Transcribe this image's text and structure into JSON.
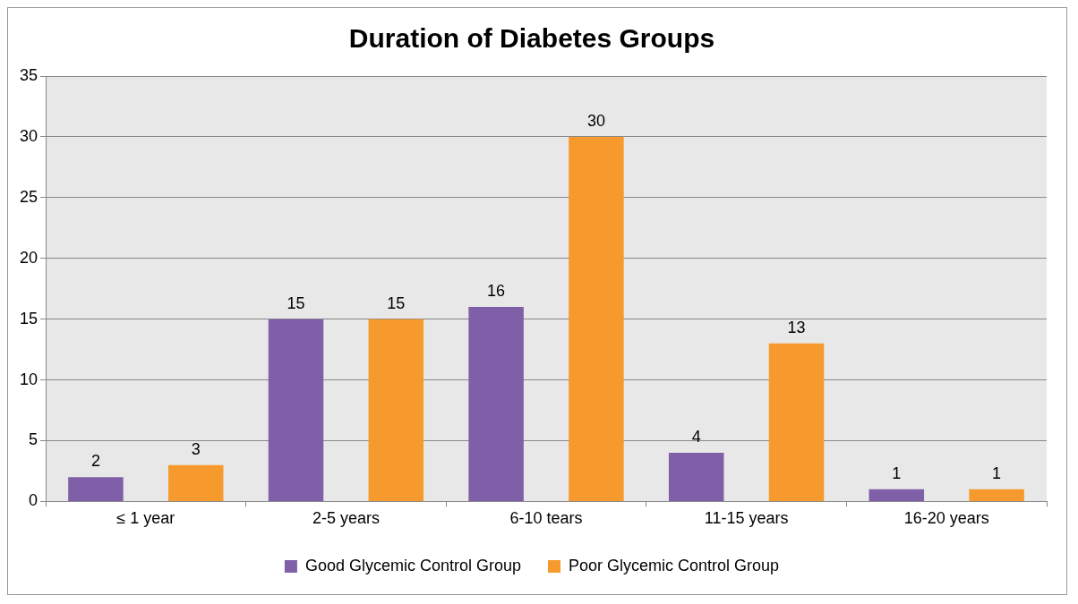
{
  "chart_data": {
    "type": "bar",
    "title": "Duration of Diabetes Groups",
    "categories": [
      "≤ 1 year",
      "2-5 years",
      "6-10 tears",
      "11-15 years",
      "16-20 years"
    ],
    "series": [
      {
        "name": "Good Glycemic Control Group",
        "color": "#7f5fa8",
        "values": [
          2,
          15,
          16,
          4,
          1
        ]
      },
      {
        "name": "Poor Glycemic Control Group",
        "color": "#f79a2e",
        "values": [
          3,
          15,
          30,
          13,
          1
        ]
      }
    ],
    "ylim": [
      0,
      35
    ],
    "yticks": [
      0,
      5,
      10,
      15,
      20,
      25,
      30,
      35
    ],
    "grid": "y",
    "legend": "bottom",
    "data_labels": true
  }
}
